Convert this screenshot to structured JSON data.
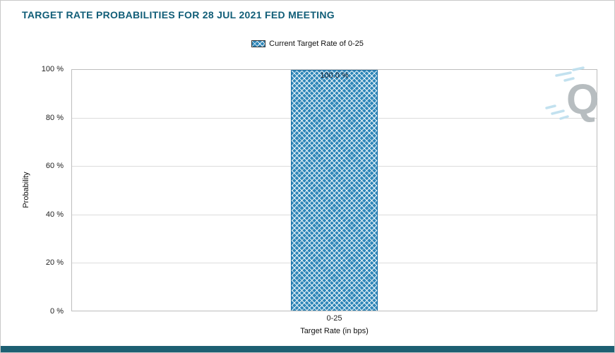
{
  "title": "TARGET RATE PROBABILITIES FOR 28 JUL 2021 FED MEETING",
  "legend": {
    "label": "Current Target Rate of 0-25"
  },
  "watermark": {
    "letter": "Q"
  },
  "chart_data": {
    "type": "bar",
    "title": "TARGET RATE PROBABILITIES FOR 28 JUL 2021 FED MEETING",
    "categories": [
      "0-25"
    ],
    "values": [
      100.0
    ],
    "value_labels": [
      "100.0 %"
    ],
    "series_name": "Current Target Rate of 0-25",
    "xlabel": "Target Rate (in bps)",
    "ylabel": "Probability",
    "ylim": [
      0,
      100
    ],
    "yticks": [
      0,
      20,
      40,
      60,
      80,
      100
    ],
    "ytick_labels": [
      "0 %",
      "20 %",
      "40 %",
      "60 %",
      "80 %",
      "100 %"
    ],
    "grid": true,
    "legend_position": "top-center",
    "bar_color": "#2e86b8",
    "bar_pattern": "crosshatch",
    "title_color": "#115e78",
    "footer_color": "#1d5f72"
  }
}
